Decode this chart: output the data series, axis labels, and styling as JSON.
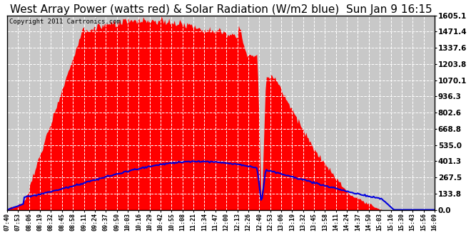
{
  "title": "West Array Power (watts red) & Solar Radiation (W/m2 blue)  Sun Jan 9 16:15",
  "copyright_text": "Copyright 2011 Cartronics.com",
  "y_ticks": [
    0.0,
    133.8,
    267.5,
    401.3,
    535.0,
    668.8,
    802.6,
    936.3,
    1070.1,
    1203.8,
    1337.6,
    1471.4,
    1605.1
  ],
  "y_max": 1605.1,
  "y_min": 0.0,
  "bg_color": "#ffffff",
  "plot_bg_color": "#c8c8c8",
  "grid_color": "#ffffff",
  "red_fill_color": "#ff0000",
  "blue_line_color": "#0000dd",
  "title_fontsize": 11,
  "tick_labels": [
    "07:40",
    "07:53",
    "08:06",
    "08:19",
    "08:32",
    "08:45",
    "08:58",
    "09:11",
    "09:24",
    "09:37",
    "09:50",
    "10:03",
    "10:16",
    "10:29",
    "10:42",
    "10:55",
    "11:08",
    "11:21",
    "11:34",
    "11:47",
    "12:00",
    "12:13",
    "12:26",
    "12:40",
    "12:53",
    "13:06",
    "13:19",
    "13:32",
    "13:45",
    "13:58",
    "14:11",
    "14:24",
    "14:37",
    "14:50",
    "15:03",
    "15:16",
    "15:30",
    "15:43",
    "15:56",
    "16:09"
  ]
}
